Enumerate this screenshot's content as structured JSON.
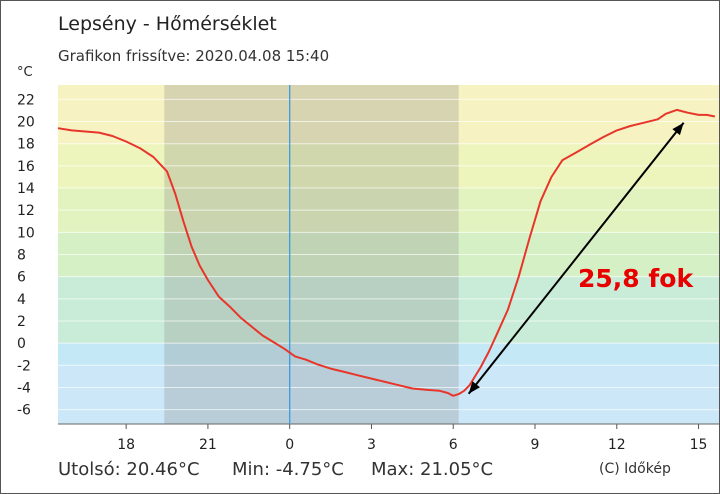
{
  "header": {
    "title": "Lepsény - Hőmérséklet",
    "subtitle": "Grafikon frissítve: 2020.04.08 15:40"
  },
  "footer": {
    "last_label": "Utolsó: 20.46°C",
    "min_label": "Min: -4.75°C",
    "max_label": "Max: 21.05°C",
    "credit": "(C) Időkép"
  },
  "annotation": {
    "text": "25,8 fok",
    "color": "#e80000"
  },
  "colors": {
    "line": "#e8352a",
    "night_shade": "#8a8a8a",
    "midnight_line": "#3b9be0",
    "arrow": "#000000"
  },
  "chart_data": {
    "type": "line",
    "title": "Lepsény - Hőmérséklet",
    "subtitle": "Grafikon frissítve: 2020.04.08 15:40",
    "ylabel": "°C",
    "xlabel": "",
    "xlim": [
      15.5,
      39.75
    ],
    "ylim": [
      -7.3,
      23.3
    ],
    "x_ticks": [
      18,
      21,
      24,
      27,
      30,
      33,
      36,
      39
    ],
    "x_tick_labels": [
      "18",
      "21",
      "0",
      "3",
      "6",
      "9",
      "12",
      "15"
    ],
    "y_ticks": [
      -6,
      -4,
      -2,
      0,
      2,
      4,
      6,
      8,
      10,
      12,
      14,
      16,
      18,
      20,
      22
    ],
    "y_tick_labels": [
      "-6",
      "-4",
      "-2",
      "0",
      "2",
      "4",
      "6",
      "8",
      "10",
      "12",
      "14",
      "16",
      "18",
      "20",
      "22"
    ],
    "grid": true,
    "night_band": [
      19.4,
      30.2
    ],
    "midnight": 24,
    "series": [
      {
        "x": [
          15.5,
          16.0,
          16.5,
          17.0,
          17.5,
          18.0,
          18.5,
          19.0,
          19.5,
          19.8,
          20.1,
          20.4,
          20.7,
          21.0,
          21.4,
          21.8,
          22.2,
          22.6,
          23.0,
          23.4,
          23.8,
          24.2,
          24.6,
          25.0,
          25.5,
          26.0,
          26.5,
          27.0,
          27.5,
          28.0,
          28.5,
          29.0,
          29.5,
          29.8,
          30.0,
          30.2,
          30.4,
          30.6,
          30.8,
          31.0,
          31.3,
          31.6,
          32.0,
          32.4,
          32.8,
          33.2,
          33.6,
          34.0,
          34.5,
          35.0,
          35.5,
          36.0,
          36.5,
          37.0,
          37.5,
          37.8,
          38.2,
          38.6,
          39.0,
          39.3,
          39.6
        ],
        "y": [
          19.4,
          19.2,
          19.1,
          19.0,
          18.7,
          18.2,
          17.6,
          16.8,
          15.5,
          13.5,
          11.0,
          8.7,
          7.0,
          5.7,
          4.2,
          3.3,
          2.3,
          1.5,
          0.7,
          0.1,
          -0.5,
          -1.2,
          -1.5,
          -1.9,
          -2.3,
          -2.6,
          -2.9,
          -3.2,
          -3.5,
          -3.8,
          -4.1,
          -4.2,
          -4.3,
          -4.5,
          -4.75,
          -4.6,
          -4.3,
          -3.8,
          -3.0,
          -2.2,
          -0.8,
          0.8,
          3.0,
          6.0,
          9.5,
          12.8,
          15.0,
          16.5,
          17.2,
          17.9,
          18.6,
          19.2,
          19.6,
          19.9,
          20.2,
          20.7,
          21.05,
          20.8,
          20.6,
          20.6,
          20.46
        ]
      }
    ],
    "annotations": [
      {
        "text": "25,8 fok",
        "arrow_from": [
          30.2,
          -4.75
        ],
        "arrow_to": [
          38.6,
          20.8
        ]
      }
    ]
  }
}
